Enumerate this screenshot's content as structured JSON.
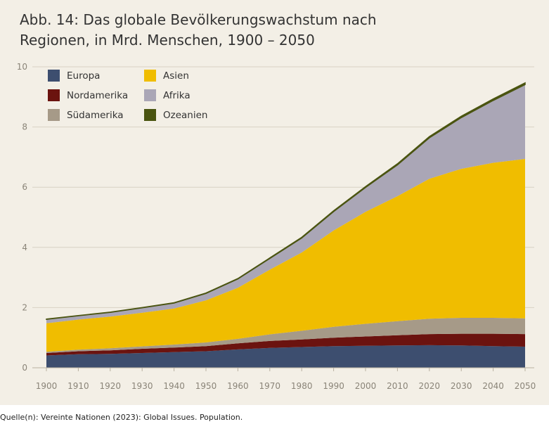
{
  "title_lines": [
    "Abb. 14: Das globale Bevölkerungswachstum nach",
    "Regionen, in Mrd. Menschen, 1900 – 2050"
  ],
  "source": "Quelle(n): Vereinte Nationen (2023): Global Issues. Population.",
  "chart_data": {
    "type": "area",
    "stacked": true,
    "x": [
      1900,
      1910,
      1920,
      1930,
      1940,
      1950,
      1960,
      1970,
      1980,
      1990,
      2000,
      2010,
      2020,
      2030,
      2040,
      2050
    ],
    "xlim": [
      1900,
      2050
    ],
    "ylim": [
      0,
      10
    ],
    "yticks": [
      0,
      2,
      4,
      6,
      8,
      10
    ],
    "xticks": [
      1900,
      1910,
      1920,
      1930,
      1940,
      1950,
      1960,
      1970,
      1980,
      1990,
      2000,
      2010,
      2020,
      2030,
      2040,
      2050
    ],
    "grid": "horizontal",
    "legend": "top-left",
    "series": [
      {
        "name": "Europa",
        "color": "#3d4e6f",
        "values": [
          0.41,
          0.45,
          0.46,
          0.49,
          0.52,
          0.55,
          0.61,
          0.66,
          0.69,
          0.72,
          0.73,
          0.74,
          0.75,
          0.74,
          0.72,
          0.7
        ]
      },
      {
        "name": "Nordamerika",
        "color": "#6b130f",
        "values": [
          0.08,
          0.1,
          0.12,
          0.14,
          0.15,
          0.17,
          0.2,
          0.23,
          0.25,
          0.28,
          0.31,
          0.34,
          0.37,
          0.39,
          0.41,
          0.42
        ]
      },
      {
        "name": "Südamerika",
        "color": "#a69a88",
        "values": [
          0.04,
          0.05,
          0.07,
          0.08,
          0.1,
          0.12,
          0.15,
          0.22,
          0.29,
          0.36,
          0.42,
          0.47,
          0.51,
          0.53,
          0.53,
          0.52
        ]
      },
      {
        "name": "Asien",
        "color": "#f0bd00",
        "values": [
          0.95,
          1.0,
          1.05,
          1.12,
          1.2,
          1.4,
          1.7,
          2.15,
          2.6,
          3.2,
          3.72,
          4.15,
          4.65,
          4.95,
          5.15,
          5.3
        ]
      },
      {
        "name": "Afrika",
        "color": "#aaa6b6",
        "values": [
          0.13,
          0.13,
          0.14,
          0.16,
          0.18,
          0.23,
          0.29,
          0.37,
          0.48,
          0.63,
          0.81,
          1.04,
          1.36,
          1.7,
          2.07,
          2.47
        ]
      },
      {
        "name": "Ozeanien",
        "color": "#4a5410",
        "values": [
          0.006,
          0.007,
          0.008,
          0.009,
          0.011,
          0.013,
          0.016,
          0.019,
          0.023,
          0.027,
          0.031,
          0.037,
          0.043,
          0.048,
          0.053,
          0.057
        ]
      }
    ]
  }
}
